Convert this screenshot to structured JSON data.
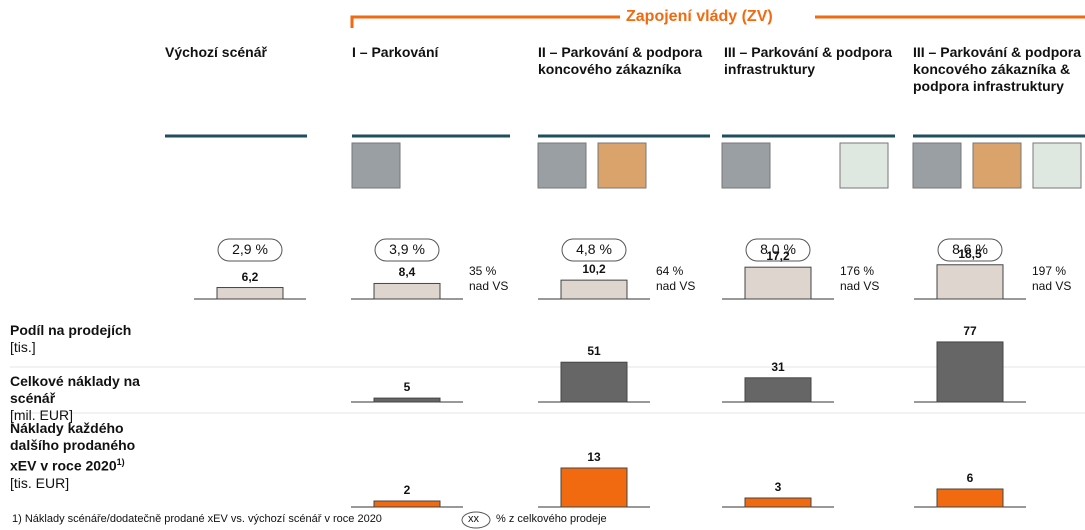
{
  "header": {
    "group_title": "Zapojení vlády (ZV)"
  },
  "columns": [
    "Výchozí scénář",
    "I – Parkování",
    "II – Parkování & podpora koncového zákazníka",
    "III – Parkování & podpora infrastruktury",
    "III – Parkování & podpora koncového zákazníka & podpora infrastruktury"
  ],
  "rows": [
    {
      "label": "Podíl na prodejích",
      "unit": "[tis.]",
      "color": "#ddd5ce",
      "shares": [
        "2,9 %",
        "3,9 %",
        "4,8 %",
        "8,0 %",
        "8,6 %"
      ],
      "values": [
        6.2,
        8.4,
        10.2,
        17.2,
        18.5
      ],
      "value_labels": [
        "6,2",
        "8,4",
        "10,2",
        "17,2",
        "18,5"
      ],
      "notes": [
        null,
        [
          "35 %",
          "nad VS"
        ],
        [
          "64 %",
          "nad VS"
        ],
        [
          "176 %",
          "nad VS"
        ],
        [
          "197 %",
          "nad VS"
        ]
      ]
    },
    {
      "label": "Celkové náklady na scénář",
      "unit": "[mil. EUR]",
      "color": "#666666",
      "values": [
        null,
        5,
        51,
        31,
        77
      ]
    },
    {
      "label": "Náklady každého dalšího prodaného xEV v roce 2020",
      "label_sup": "1)",
      "unit": "[tis. EUR]",
      "color": "#f26a10",
      "values": [
        null,
        2,
        13,
        3,
        6
      ]
    }
  ],
  "footnote": {
    "text": "1) Náklady scénáře/dodatečně prodané xEV vs. výchozí scénář v roce 2020",
    "legend_symbol": "xx",
    "legend_text": "% z celkového prodeje"
  }
}
